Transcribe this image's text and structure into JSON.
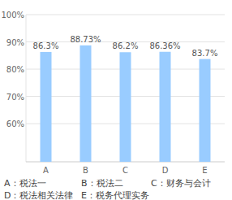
{
  "chart_data": {
    "type": "bar",
    "categories": [
      "A",
      "B",
      "C",
      "D",
      "E"
    ],
    "values": [
      86.3,
      88.73,
      86.2,
      86.36,
      83.7
    ],
    "value_labels": [
      "86.3%",
      "88.73%",
      "86.2%",
      "86.36%",
      "83.7%"
    ],
    "color": "#99ccff",
    "ylim": [
      46,
      100
    ],
    "yticks": [
      {
        "value": 60,
        "label": "60%"
      },
      {
        "value": 70,
        "label": "70%"
      },
      {
        "value": 80,
        "label": "80%"
      },
      {
        "value": 90,
        "label": "90%"
      },
      {
        "value": 100,
        "label": "100%"
      }
    ],
    "grid": true,
    "data_labels": true,
    "annotations": [
      "A：税法一",
      "B：税法二",
      "C：财务与会计",
      "D：税法相关法律",
      "E：税务代理实务"
    ]
  }
}
